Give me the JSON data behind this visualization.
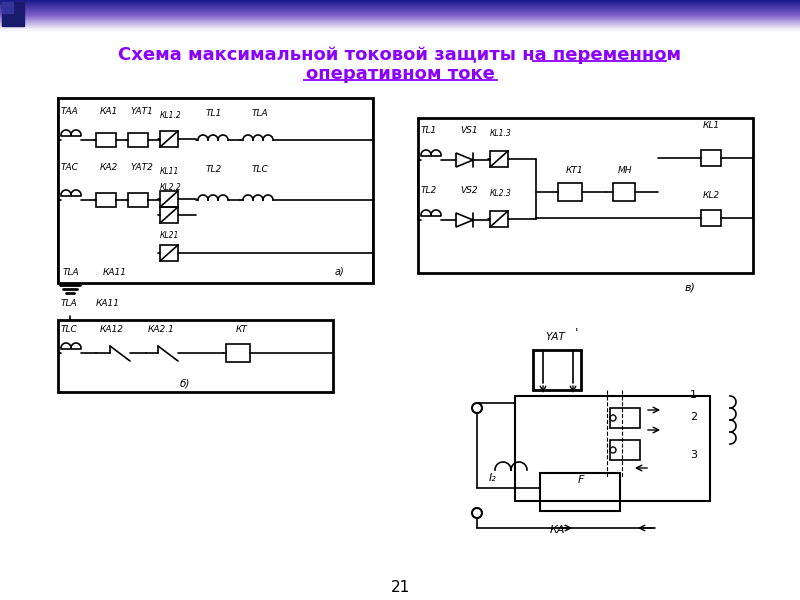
{
  "title_line1": "Схема максимальной токовой защиты на переменном",
  "title_line2": "оперативном токе",
  "title_color": "#8B00FF",
  "bg_color": "#FFFFFF",
  "page_number": "21",
  "figsize": [
    8.0,
    6.0
  ],
  "dpi": 100
}
